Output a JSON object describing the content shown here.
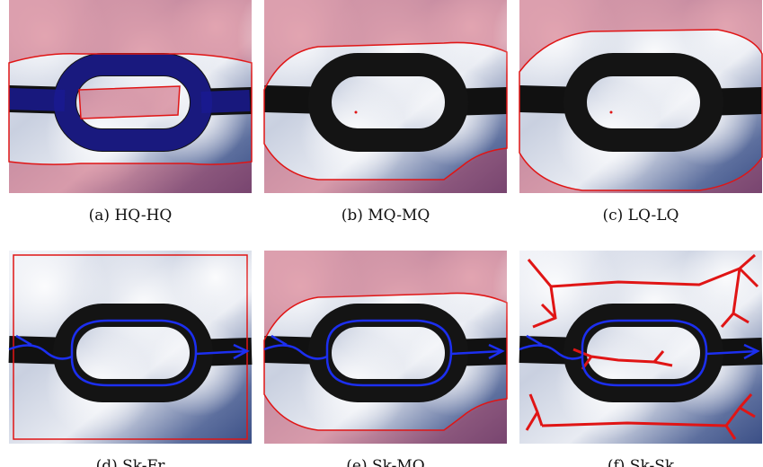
{
  "figure": {
    "panels": [
      {
        "caption": "(a) HQ-HQ"
      },
      {
        "caption": "(b) MQ-MQ"
      },
      {
        "caption": "(c) LQ-LQ"
      },
      {
        "caption": "(d) Sk-Fr"
      },
      {
        "caption": "(e) Sk-MQ"
      },
      {
        "caption": "(f) Sk-Sk"
      }
    ]
  }
}
